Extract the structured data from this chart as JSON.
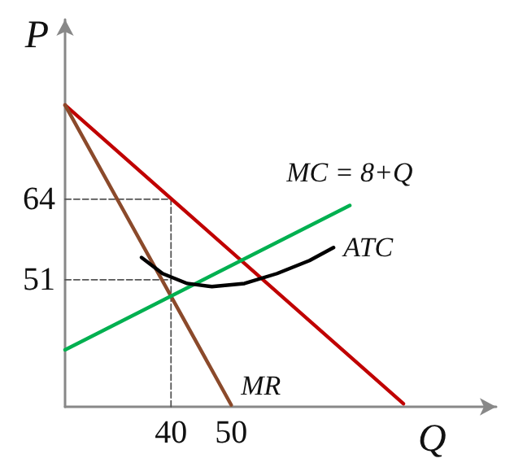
{
  "chart_data": {
    "type": "line",
    "xlabel": "Q",
    "ylabel": "P",
    "xlim": [
      22.4,
      94
    ],
    "ylim": [
      30.5,
      93
    ],
    "xticks": [
      40,
      50
    ],
    "yticks": [
      51,
      64
    ],
    "grid": false,
    "legend": false,
    "marker": "none",
    "series": [
      {
        "color": "#c00000",
        "x": [
          22.4,
          78.6
        ],
        "values": [
          79.2,
          31
        ]
      },
      {
        "name": "MR",
        "color": "#8b4a2b",
        "x": [
          22.4,
          50
        ],
        "values": [
          79.2,
          30.8
        ]
      },
      {
        "name": "MC = 8+Q",
        "color": "#00b050",
        "x": [
          22.4,
          69.7
        ],
        "values": [
          39.7,
          63
        ]
      },
      {
        "name": "ATC",
        "color": "#000000",
        "x": [
          35.1,
          38.6,
          42.7,
          46.8,
          52.2,
          57.6,
          63.0,
          67.0
        ],
        "values": [
          54.6,
          52.0,
          50.4,
          49.9,
          50.4,
          52.0,
          54.1,
          56.2
        ]
      },
      {
        "color": "#555555",
        "line_style": "dashed",
        "x": [
          22.4,
          40,
          40
        ],
        "values": [
          64,
          64,
          30.5
        ]
      },
      {
        "color": "#555555",
        "line_style": "dashed",
        "x": [
          22.4,
          40
        ],
        "values": [
          51,
          51
        ]
      }
    ]
  }
}
